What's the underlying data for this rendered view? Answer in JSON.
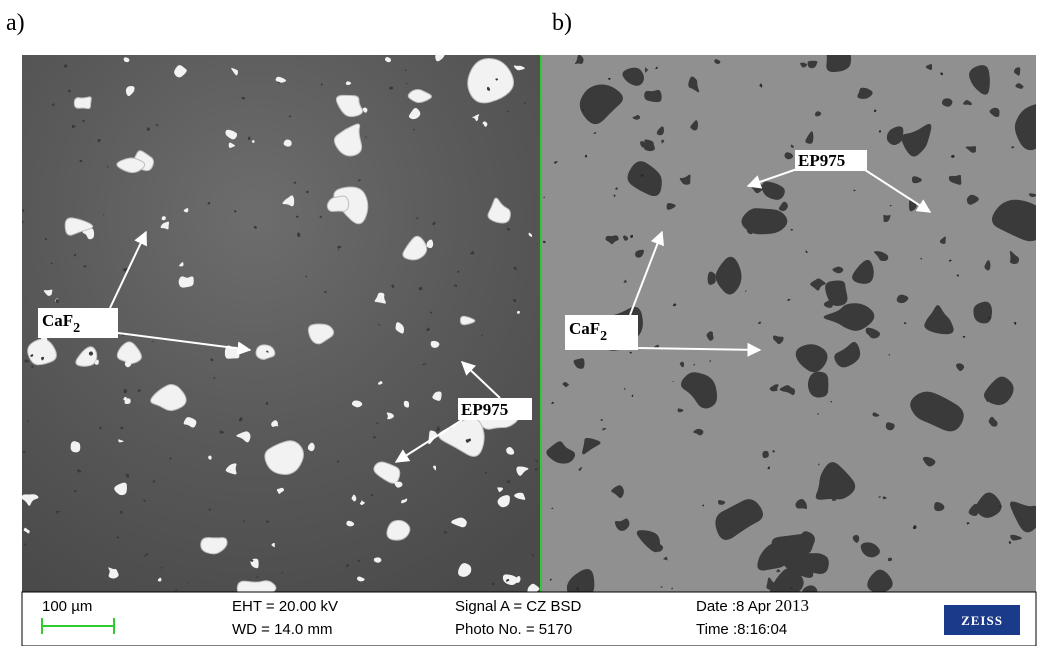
{
  "panels": [
    {
      "label": "a)",
      "caf2": {
        "text": "CaF",
        "sub": "2"
      },
      "ep975": "EP975"
    },
    {
      "label": "b)",
      "caf2": {
        "text": "CaF",
        "sub": "2"
      },
      "ep975": "EP975"
    }
  ],
  "info_bar": {
    "scale": "100 µm",
    "eht": "EHT = 20.00 kV",
    "wd": "WD = 14.0 mm",
    "signal": "Signal A = CZ BSD",
    "photo": "Photo No. = 5170",
    "date_prefix": "Date :8 Apr",
    "date_year": "2013",
    "time": "Time :8:16:04",
    "logo": "ZEISS"
  }
}
